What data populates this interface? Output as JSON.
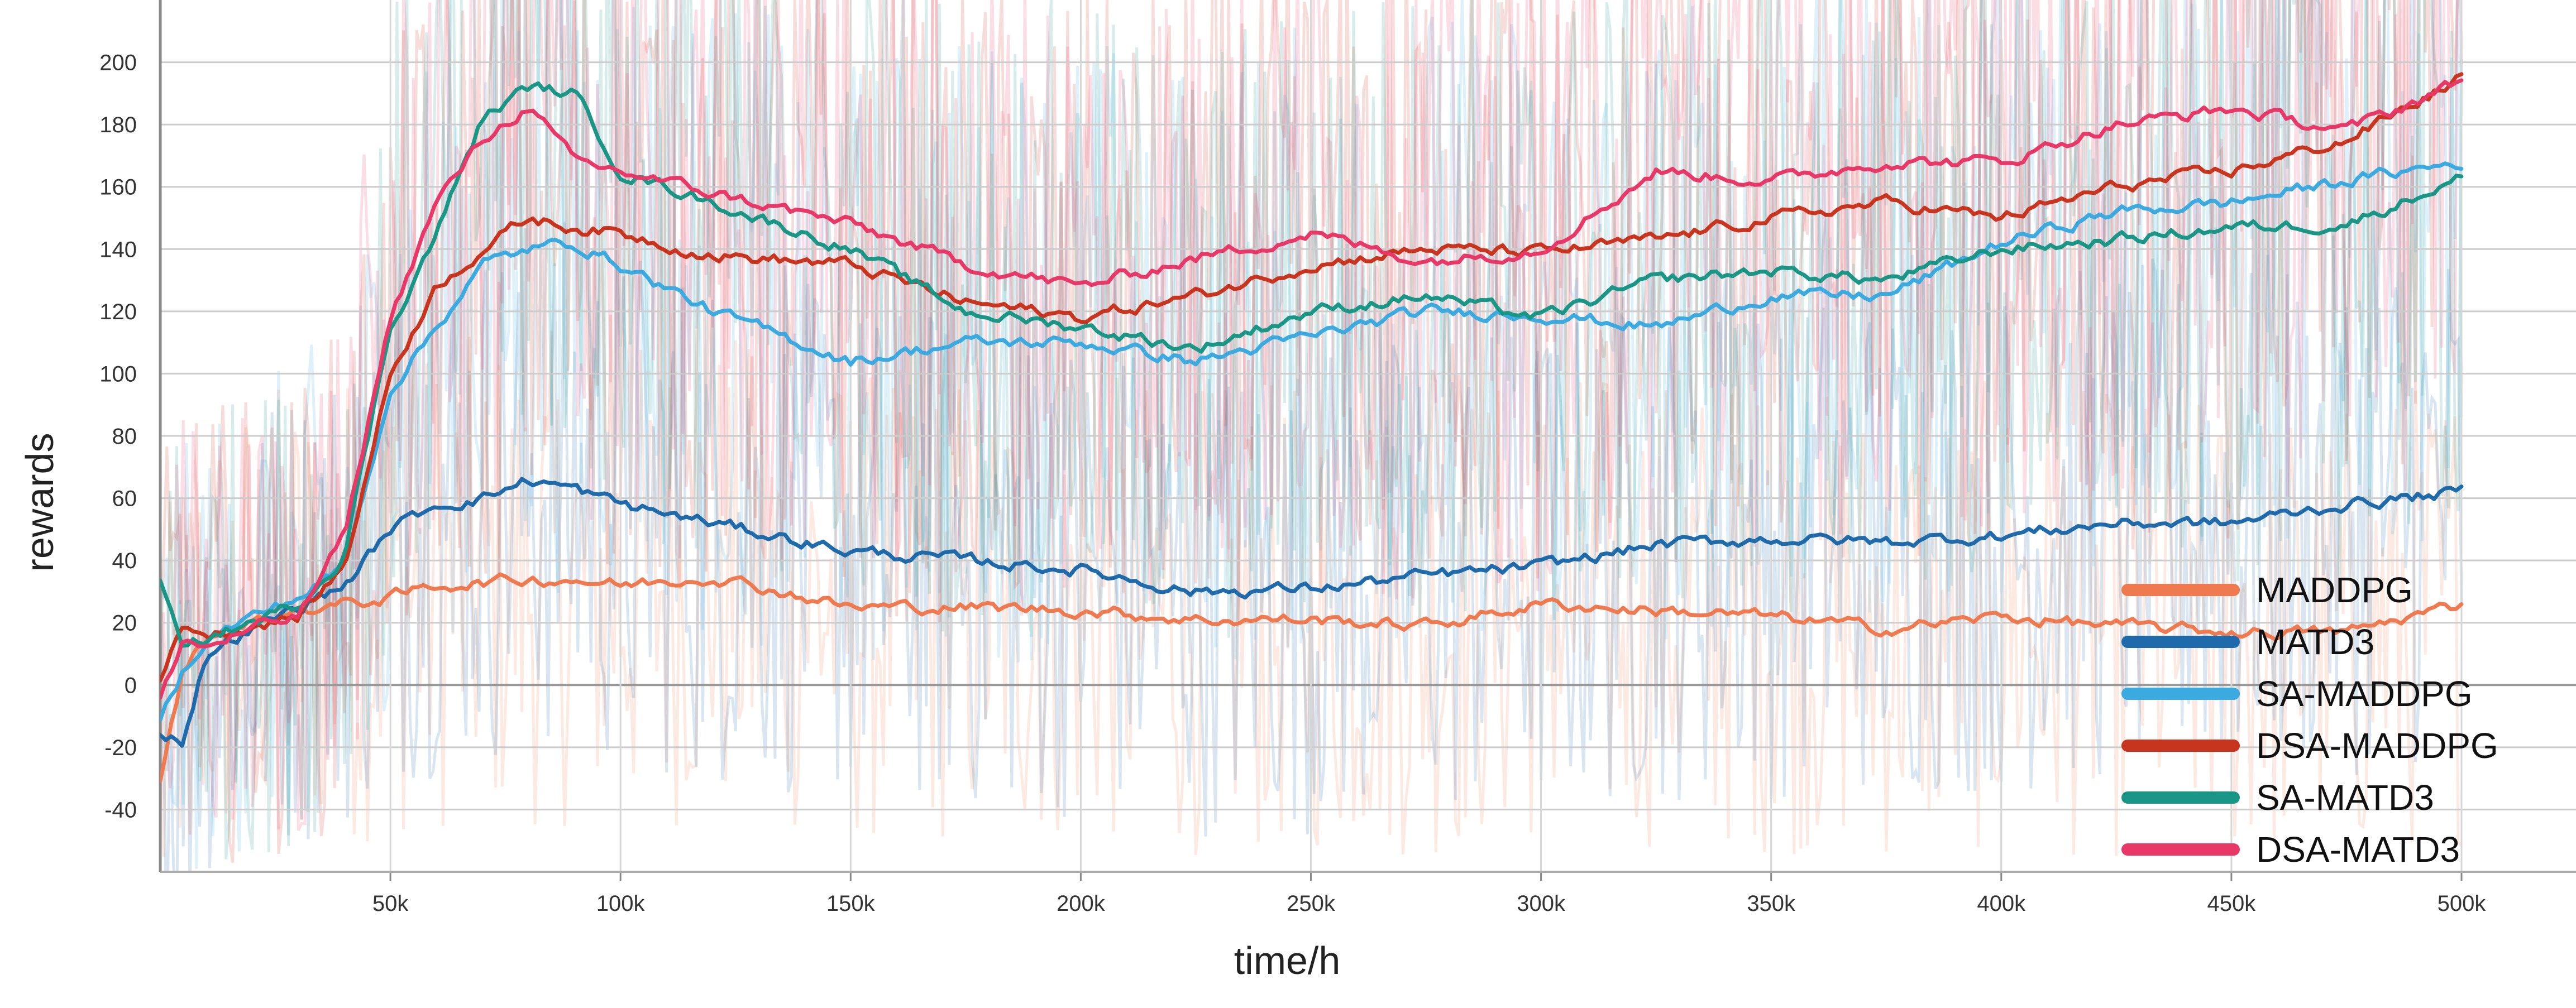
{
  "chart_data": {
    "type": "line",
    "xlabel": "time/h",
    "ylabel": "rewards",
    "xlim": [
      0,
      500000
    ],
    "ylim": [
      -60,
      220
    ],
    "x_ticks": [
      50000,
      100000,
      150000,
      200000,
      250000,
      300000,
      350000,
      400000,
      450000,
      500000
    ],
    "x_tick_labels": [
      "50k",
      "100k",
      "150k",
      "200k",
      "250k",
      "300k",
      "350k",
      "400k",
      "450k",
      "500k"
    ],
    "y_ticks": [
      -40,
      -20,
      0,
      20,
      40,
      60,
      80,
      100,
      120,
      140,
      160,
      180,
      200
    ],
    "y_tick_labels": [
      "-40",
      "-20",
      "0",
      "20",
      "40",
      "60",
      "80",
      "100",
      "120",
      "140",
      "160",
      "180",
      "200"
    ],
    "grid": true,
    "legend_position": "bottom-right",
    "x": [
      0,
      5000,
      10000,
      20000,
      30000,
      40000,
      50000,
      60000,
      70000,
      80000,
      90000,
      100000,
      120000,
      150000,
      175000,
      200000,
      225000,
      250000,
      275000,
      300000,
      325000,
      350000,
      375000,
      400000,
      425000,
      450000,
      475000,
      500000
    ],
    "series": [
      {
        "name": "MADDPG",
        "color": "#f07a50",
        "values": [
          -30,
          5,
          15,
          20,
          24,
          26,
          28,
          32,
          33,
          34,
          34,
          32,
          35,
          25,
          25,
          24,
          21,
          21,
          19,
          26,
          24,
          22,
          18,
          22,
          19,
          17,
          17,
          26
        ]
      },
      {
        "name": "MATD3",
        "color": "#1f6aaa",
        "values": [
          -15,
          -18,
          10,
          18,
          25,
          32,
          50,
          58,
          60,
          66,
          63,
          58,
          52,
          43,
          40,
          37,
          30,
          31,
          35,
          38,
          45,
          47,
          46,
          48,
          52,
          52,
          58,
          62
        ]
      },
      {
        "name": "SA-MADDPG",
        "color": "#3aaae0",
        "values": [
          -10,
          5,
          15,
          22,
          28,
          38,
          95,
          115,
          135,
          140,
          142,
          135,
          120,
          104,
          110,
          110,
          104,
          112,
          120,
          119,
          115,
          125,
          125,
          142,
          152,
          155,
          162,
          168
        ]
      },
      {
        "name": "DSA-MADDPG",
        "color": "#c8341e",
        "values": [
          0,
          20,
          16,
          19,
          22,
          38,
          100,
          128,
          140,
          150,
          147,
          145,
          138,
          135,
          123,
          118,
          125,
          135,
          140,
          139,
          143,
          150,
          155,
          150,
          160,
          165,
          175,
          195
        ]
      },
      {
        "name": "SA-MATD3",
        "color": "#1a9687",
        "values": [
          35,
          10,
          15,
          20,
          26,
          42,
          115,
          145,
          182,
          192,
          190,
          165,
          155,
          140,
          120,
          115,
          108,
          120,
          125,
          118,
          130,
          133,
          130,
          140,
          143,
          147,
          148,
          163
        ]
      },
      {
        "name": "DSA-MATD3",
        "color": "#e83868",
        "values": [
          -5,
          15,
          12,
          18,
          22,
          48,
          118,
          155,
          175,
          186,
          168,
          165,
          158,
          148,
          135,
          128,
          137,
          145,
          136,
          140,
          165,
          162,
          168,
          168,
          180,
          185,
          178,
          194
        ]
      }
    ]
  }
}
